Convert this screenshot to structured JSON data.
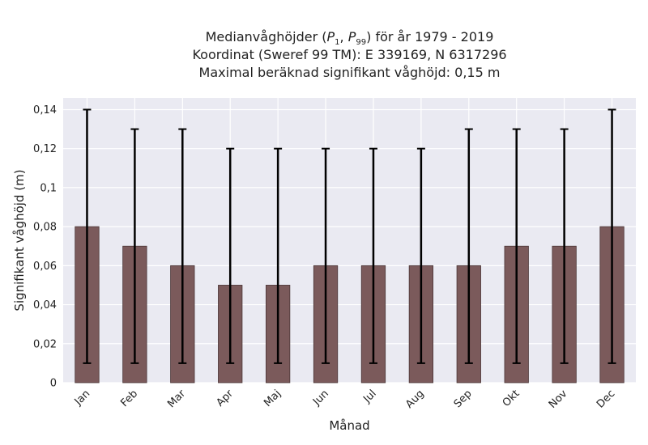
{
  "chart_data": {
    "type": "bar",
    "title_line1": "Medianvåghöjder (",
    "title_p": "P",
    "title_sub1": "1",
    "title_comma": ", ",
    "title_sub2": "99",
    "title_line1_end": ") för år 1979 - 2019",
    "subtitle1": "Koordinat (Sweref 99 TM): E 339169, N 6317296",
    "subtitle2": "Maximal beräknad signifikant våghöjd: 0,15 m",
    "xlabel": "Månad",
    "ylabel": "Signifikant våghöjd (m)",
    "categories": [
      "Jan",
      "Feb",
      "Mar",
      "Apr",
      "Maj",
      "Jun",
      "Jul",
      "Aug",
      "Sep",
      "Okt",
      "Nov",
      "Dec"
    ],
    "values": [
      0.08,
      0.07,
      0.06,
      0.05,
      0.05,
      0.06,
      0.06,
      0.06,
      0.06,
      0.07,
      0.07,
      0.08
    ],
    "error_low": [
      0.01,
      0.01,
      0.01,
      0.01,
      0.01,
      0.01,
      0.01,
      0.01,
      0.01,
      0.01,
      0.01,
      0.01
    ],
    "error_high": [
      0.14,
      0.13,
      0.13,
      0.12,
      0.12,
      0.12,
      0.12,
      0.12,
      0.13,
      0.13,
      0.13,
      0.14
    ],
    "yticks": [
      "0",
      "0,02",
      "0,04",
      "0,06",
      "0,08",
      "0,1",
      "0,12",
      "0,14"
    ],
    "ylim": [
      0,
      0.146
    ],
    "grid": true,
    "colors": {
      "bar": "#7b5a5b",
      "background": "#eaeaf2",
      "grid": "#ffffff",
      "error": "#000000"
    }
  }
}
